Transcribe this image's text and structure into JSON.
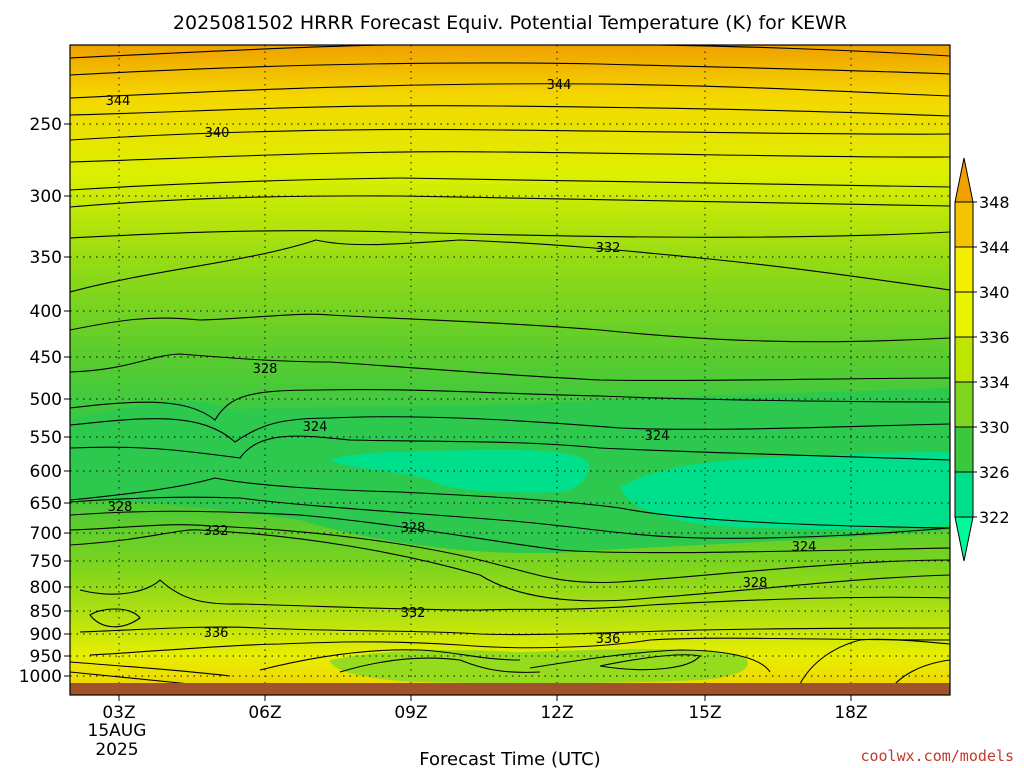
{
  "chart_data": {
    "type": "heatmap",
    "title": "2025081502 HRRR Forecast Equiv. Potential Temperature (K) for KEWR",
    "xlabel": "Forecast Time (UTC)",
    "ylabel": "",
    "credit": "coolwx.com/models",
    "x_ticks": [
      "03Z",
      "06Z",
      "09Z",
      "12Z",
      "15Z",
      "18Z"
    ],
    "x_date_label": [
      "15AUG",
      "2025"
    ],
    "y_ticks": [
      "250",
      "300",
      "350",
      "400",
      "450",
      "500",
      "550",
      "600",
      "650",
      "700",
      "750",
      "800",
      "850",
      "900",
      "950",
      "1000"
    ],
    "y_scale": "log-pressure",
    "grid": true,
    "colorbar": {
      "labels": [
        "348",
        "344",
        "340",
        "336",
        "334",
        "330",
        "326",
        "322"
      ],
      "colors": [
        "#f0a000",
        "#f4c400",
        "#f4ee00",
        "#e8f400",
        "#bce600",
        "#7fd61e",
        "#3cc83c",
        "#00e08c",
        "#00fa9a"
      ]
    },
    "contour_labels": [
      "344",
      "344",
      "340",
      "332",
      "328",
      "324",
      "324",
      "328",
      "332",
      "328",
      "324",
      "328",
      "332",
      "336",
      "336"
    ],
    "ground_color": "#a0522d"
  }
}
